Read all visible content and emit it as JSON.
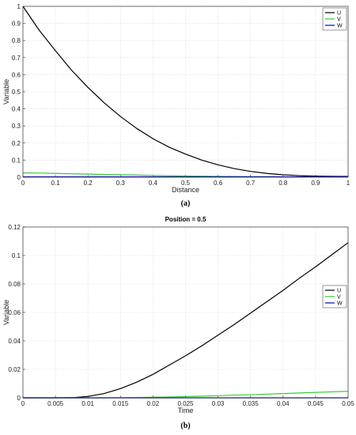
{
  "chart_data": [
    {
      "type": "line",
      "caption": "(a)",
      "title": "",
      "xlabel": "Distance",
      "ylabel": "Variable",
      "xlim": [
        0,
        1
      ],
      "ylim": [
        0,
        1
      ],
      "xticks": [
        "0",
        "0.1",
        "0.2",
        "0.3",
        "0.4",
        "0.5",
        "0.6",
        "0.7",
        "0.8",
        "0.9",
        "1"
      ],
      "yticks": [
        "0",
        "0.1",
        "0.2",
        "0.3",
        "0.4",
        "0.5",
        "0.6",
        "0.7",
        "0.8",
        "0.9",
        "1"
      ],
      "grid": true,
      "legend_position": "top-right",
      "x": [
        0,
        0.05,
        0.1,
        0.15,
        0.2,
        0.25,
        0.3,
        0.35,
        0.4,
        0.45,
        0.5,
        0.55,
        0.6,
        0.65,
        0.7,
        0.75,
        0.8,
        0.85,
        0.9,
        0.95,
        1
      ],
      "series": [
        {
          "name": "U",
          "color": "#000000",
          "values": [
            1.0,
            0.86,
            0.74,
            0.625,
            0.525,
            0.435,
            0.355,
            0.285,
            0.225,
            0.175,
            0.135,
            0.1,
            0.072,
            0.05,
            0.034,
            0.022,
            0.014,
            0.009,
            0.006,
            0.005,
            0.004
          ]
        },
        {
          "name": "V",
          "color": "#33cc33",
          "values": [
            0.025,
            0.024,
            0.022,
            0.02,
            0.018,
            0.016,
            0.014,
            0.012,
            0.01,
            0.008,
            0.007,
            0.006,
            0.005,
            0.004,
            0.003,
            0.003,
            0.002,
            0.002,
            0.002,
            0.002,
            0.002
          ]
        },
        {
          "name": "W",
          "color": "#0000cc",
          "values": [
            0.002,
            0.002,
            0.002,
            0.002,
            0.002,
            0.002,
            0.002,
            0.002,
            0.002,
            0.002,
            0.002,
            0.002,
            0.002,
            0.002,
            0.002,
            0.002,
            0.002,
            0.002,
            0.002,
            0.002,
            0.002
          ]
        }
      ]
    },
    {
      "type": "line",
      "caption": "(b)",
      "title": "Position = 0.5",
      "xlabel": "Time",
      "ylabel": "Variable",
      "xlim": [
        0,
        0.05
      ],
      "ylim": [
        0,
        0.12
      ],
      "xticks": [
        "0",
        "0.005",
        "0.01",
        "0.015",
        "0.02",
        "0.025",
        "0.03",
        "0.035",
        "0.04",
        "0.045",
        "0.05"
      ],
      "yticks": [
        "0",
        "0.02",
        "0.04",
        "0.06",
        "0.08",
        "0.1",
        "0.12"
      ],
      "grid": true,
      "legend_position": "right",
      "x": [
        0,
        0.005,
        0.008,
        0.01,
        0.0125,
        0.015,
        0.0175,
        0.02,
        0.0225,
        0.025,
        0.0275,
        0.03,
        0.0325,
        0.035,
        0.0375,
        0.04,
        0.0425,
        0.045,
        0.0475,
        0.05
      ],
      "series": [
        {
          "name": "U",
          "color": "#000000",
          "values": [
            0,
            0,
            0.0002,
            0.001,
            0.003,
            0.0065,
            0.011,
            0.0165,
            0.023,
            0.0295,
            0.0365,
            0.044,
            0.0515,
            0.0595,
            0.0675,
            0.0755,
            0.084,
            0.092,
            0.1005,
            0.109
          ]
        },
        {
          "name": "V",
          "color": "#33cc33",
          "values": [
            0,
            0,
            0,
            0,
            0,
            0.0001,
            0.0002,
            0.0004,
            0.0006,
            0.0009,
            0.0012,
            0.0015,
            0.0019,
            0.0022,
            0.0026,
            0.003,
            0.0034,
            0.0038,
            0.0042,
            0.0046
          ]
        },
        {
          "name": "W",
          "color": "#0000cc",
          "values": [
            0,
            0,
            0,
            0,
            0,
            0,
            0,
            0,
            0,
            0,
            0,
            0,
            0,
            0,
            0,
            0,
            0,
            0,
            0,
            0
          ]
        }
      ]
    }
  ]
}
